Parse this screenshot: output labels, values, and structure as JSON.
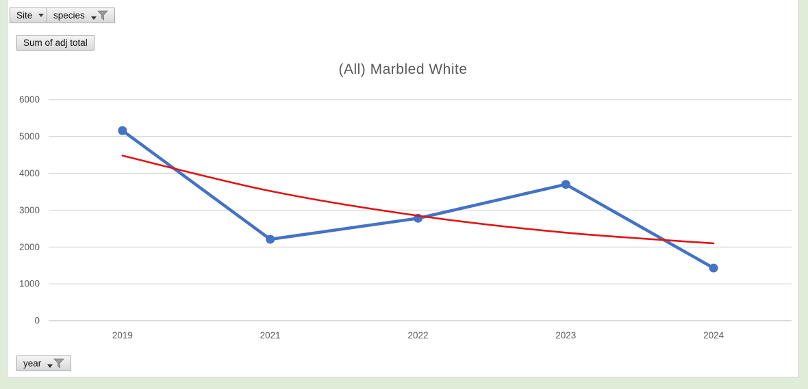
{
  "page": {
    "background_color": "#dfecd8",
    "chart_area_color": "#ffffff",
    "chart_border_color": "#d2d2d2"
  },
  "pivot_field_buttons": {
    "site": "Site",
    "species": "species",
    "value": "Sum of adj total",
    "year": "year"
  },
  "icons": {
    "dropdown_arrow": "chevron-down",
    "filter_funnel": "funnel"
  },
  "chart_data": {
    "type": "line",
    "title": "(All) Marbled White",
    "title_color": "#595959",
    "categories": [
      "2019",
      "2021",
      "2022",
      "2023",
      "2024"
    ],
    "series": [
      {
        "name": "Sum of adj total",
        "style": "line_with_markers",
        "color": "#4472c4",
        "values": [
          5160,
          2210,
          2780,
          3700,
          1430
        ]
      },
      {
        "name": "Trendline",
        "style": "smooth_line",
        "color": "#e01414",
        "values": [
          4480,
          3520,
          2850,
          2390,
          2100
        ]
      }
    ],
    "xlabel": "",
    "ylabel": "",
    "ylim": [
      0,
      6000
    ],
    "yticks": [
      0,
      1000,
      2000,
      3000,
      4000,
      5000,
      6000
    ],
    "grid": "horizontal",
    "grid_color": "#d9d9d9",
    "axis_line_color": "#bfbfbf",
    "tick_label_color": "#595959",
    "legend": "none"
  }
}
